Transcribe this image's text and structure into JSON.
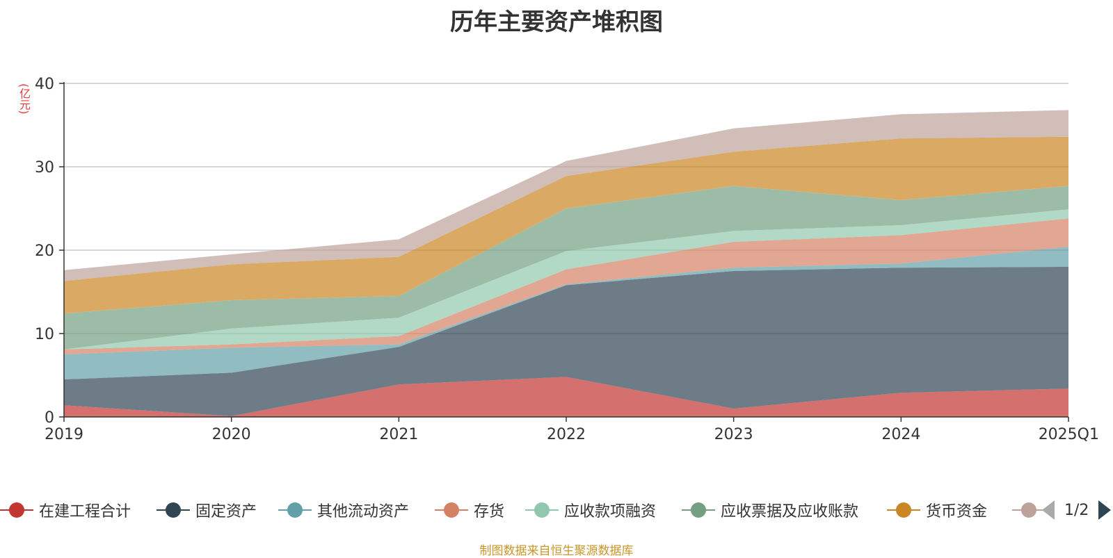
{
  "chart_data": {
    "type": "area",
    "title": "历年主要资产堆积图",
    "ylabel": "(亿元)",
    "ylim": [
      0,
      40
    ],
    "yticks": [
      0,
      10,
      20,
      30,
      40
    ],
    "stacked": true,
    "grid": true,
    "categories": [
      "2019",
      "2020",
      "2021",
      "2022",
      "2023",
      "2024",
      "2025Q1"
    ],
    "series": [
      {
        "name": "在建工程合计",
        "color": "#c23531",
        "values": [
          1.4,
          0.1,
          3.9,
          4.8,
          1.0,
          2.9,
          3.4
        ]
      },
      {
        "name": "固定资产",
        "color": "#2f4554",
        "values": [
          3.1,
          5.2,
          4.5,
          11.0,
          16.5,
          15.0,
          14.6
        ]
      },
      {
        "name": "其他流动资产",
        "color": "#61a0a8",
        "values": [
          3.0,
          3.0,
          0.3,
          0.1,
          0.4,
          0.5,
          2.4
        ]
      },
      {
        "name": "存货",
        "color": "#d48265",
        "values": [
          0.6,
          0.4,
          1.0,
          1.8,
          3.1,
          3.4,
          3.4
        ]
      },
      {
        "name": "应收款项融资",
        "color": "#91c7ae",
        "values": [
          0.0,
          1.9,
          2.2,
          2.2,
          1.3,
          1.2,
          1.1
        ]
      },
      {
        "name": "应收票据及应收账款",
        "color": "#749f83",
        "values": [
          4.3,
          3.4,
          2.6,
          5.1,
          5.4,
          3.0,
          2.8
        ]
      },
      {
        "name": "货币资金",
        "color": "#ca8622",
        "values": [
          3.9,
          4.3,
          4.7,
          3.9,
          4.1,
          7.4,
          5.9
        ]
      },
      {
        "name": "",
        "color": "#bda29a",
        "values": [
          1.3,
          1.2,
          2.1,
          1.8,
          2.8,
          2.9,
          3.2
        ]
      }
    ],
    "legend_position": "bottom"
  },
  "legend": {
    "items": [
      "在建工程合计",
      "固定资产",
      "其他流动资产",
      "存货",
      "应收款项融资",
      "应收票据及应收账款",
      "货币资金",
      ""
    ],
    "page": "1/2"
  },
  "footer": {
    "source": "制图数据来自恒生聚源数据库"
  }
}
